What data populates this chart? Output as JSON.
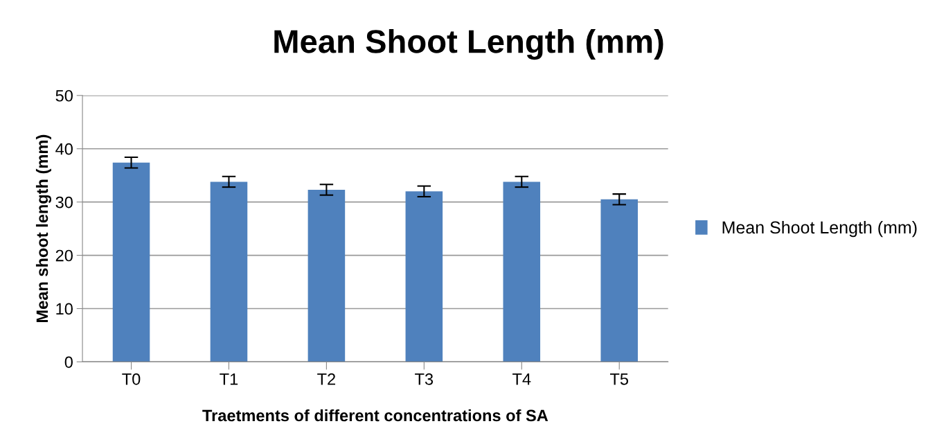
{
  "chart_data": {
    "type": "bar",
    "title": "Mean Shoot Length (mm)",
    "xlabel": "Traetments of different concentrations of SA",
    "ylabel": "Mean shoot length (mm)",
    "categories": [
      "T0",
      "T1",
      "T2",
      "T3",
      "T4",
      "T5"
    ],
    "series": [
      {
        "name": "Mean Shoot Length (mm)",
        "color": "#4f81bd",
        "values": [
          37.4,
          33.8,
          32.3,
          32.0,
          33.8,
          30.5
        ],
        "errors": [
          1.0,
          1.0,
          1.0,
          1.0,
          1.0,
          1.0
        ]
      }
    ],
    "ylim": [
      0,
      50
    ],
    "yticks": [
      0,
      10,
      20,
      30,
      40,
      50
    ],
    "grid": "y",
    "legend": "right"
  }
}
